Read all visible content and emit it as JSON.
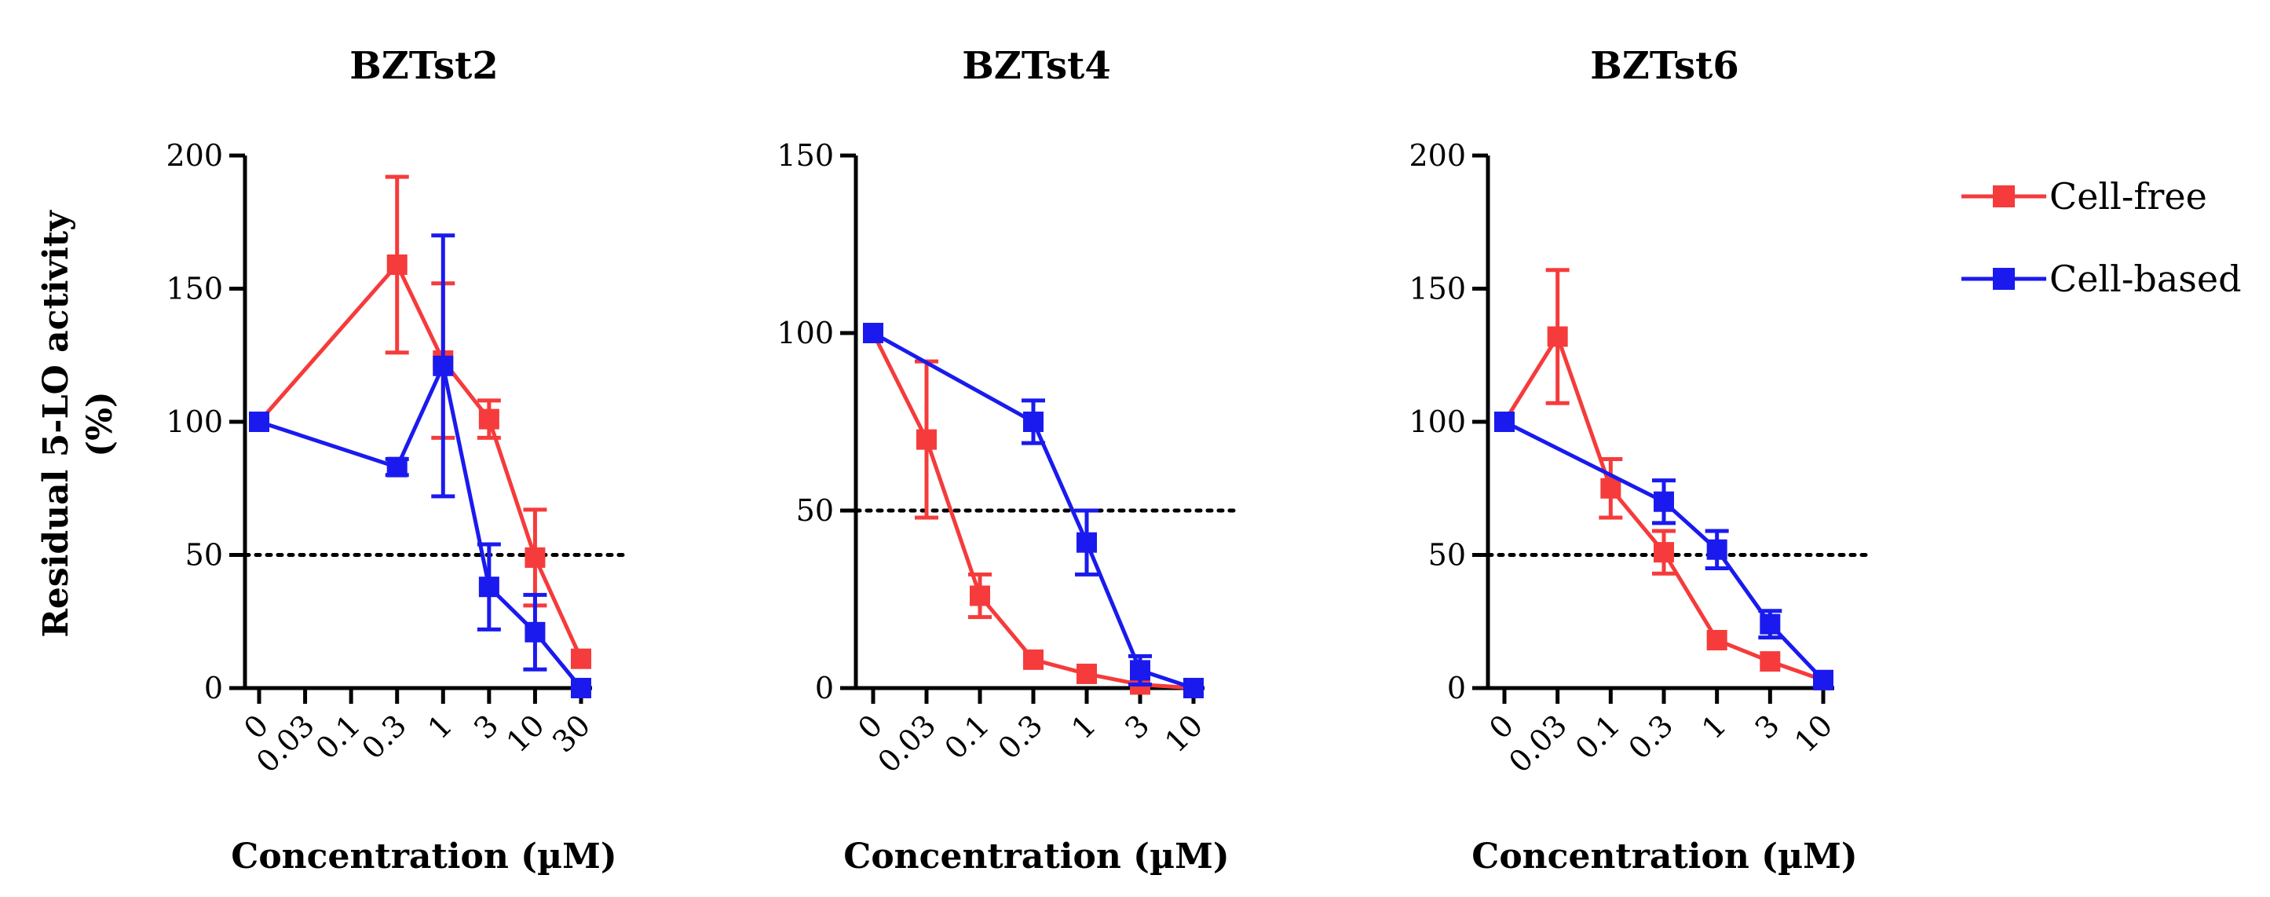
{
  "figure": {
    "ylabel_line1": "Residual 5-LO activity",
    "ylabel_line2": "(%)",
    "xlabel": "Concentration (µM)",
    "legend": {
      "placement": "top-right",
      "entries": [
        "Cell-free",
        "Cell-based"
      ]
    }
  },
  "chart_data": [
    {
      "type": "line",
      "title": "BZTst2",
      "xlabel": "Concentration (µM)",
      "ylabel": "Residual 5-LO activity (%)",
      "categories": [
        "0",
        "0.03",
        "0.1",
        "0.3",
        "1",
        "3",
        "10",
        "30"
      ],
      "ylim": [
        0,
        200
      ],
      "yticks": [
        0,
        50,
        100,
        150,
        200
      ],
      "reference_line": 50,
      "series": [
        {
          "name": "Cell-free",
          "color": "#f53b3b",
          "x": [
            "0",
            "0.3",
            "1",
            "3",
            "10",
            "30"
          ],
          "values": [
            100,
            159,
            123,
            101,
            49,
            11
          ],
          "errors": [
            0,
            33,
            29,
            7,
            18,
            0
          ]
        },
        {
          "name": "Cell-based",
          "color": "#1a1aef",
          "x": [
            "0",
            "0.3",
            "1",
            "3",
            "10",
            "30"
          ],
          "values": [
            100,
            83,
            121,
            38,
            21,
            0
          ],
          "errors": [
            0,
            3,
            49,
            16,
            14,
            0
          ]
        }
      ]
    },
    {
      "type": "line",
      "title": "BZTst4",
      "xlabel": "Concentration (µM)",
      "ylabel": "Residual 5-LO activity (%)",
      "categories": [
        "0",
        "0.03",
        "0.1",
        "0.3",
        "1",
        "3",
        "10"
      ],
      "ylim": [
        0,
        150
      ],
      "yticks": [
        0,
        50,
        100,
        150
      ],
      "reference_line": 50,
      "series": [
        {
          "name": "Cell-free",
          "color": "#f53b3b",
          "x": [
            "0",
            "0.03",
            "0.1",
            "0.3",
            "1",
            "3",
            "10"
          ],
          "values": [
            100,
            70,
            26,
            8,
            4,
            1,
            0
          ],
          "errors": [
            0,
            22,
            6,
            0,
            0,
            0,
            0
          ]
        },
        {
          "name": "Cell-based",
          "color": "#1a1aef",
          "x": [
            "0",
            "0.3",
            "1",
            "3",
            "10"
          ],
          "values": [
            100,
            75,
            41,
            5,
            0
          ],
          "errors": [
            0,
            6,
            9,
            4,
            0
          ]
        }
      ]
    },
    {
      "type": "line",
      "title": "BZTst6",
      "xlabel": "Concentration (µM)",
      "ylabel": "Residual 5-LO activity (%)",
      "categories": [
        "0",
        "0.03",
        "0.1",
        "0.3",
        "1",
        "3",
        "10"
      ],
      "ylim": [
        0,
        200
      ],
      "yticks": [
        0,
        50,
        100,
        150,
        200
      ],
      "reference_line": 50,
      "series": [
        {
          "name": "Cell-free",
          "color": "#f53b3b",
          "x": [
            "0",
            "0.03",
            "0.1",
            "0.3",
            "1",
            "3",
            "10"
          ],
          "values": [
            100,
            132,
            75,
            51,
            18,
            10,
            3
          ],
          "errors": [
            0,
            25,
            11,
            8,
            0,
            0,
            0
          ]
        },
        {
          "name": "Cell-based",
          "color": "#1a1aef",
          "x": [
            "0",
            "0.3",
            "1",
            "3",
            "10"
          ],
          "values": [
            100,
            70,
            52,
            24,
            3
          ],
          "errors": [
            0,
            8,
            7,
            5,
            0
          ]
        }
      ]
    }
  ]
}
